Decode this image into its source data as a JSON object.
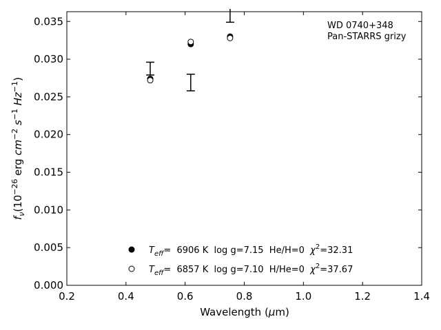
{
  "chart_data": {
    "type": "scatter",
    "xlabel_main": "Wavelength (",
    "xlabel_mu": "μ",
    "xlabel_unit": "m)",
    "ylabel_f": "f",
    "ylabel_nu": "ν",
    "ylabel_paren": "(10",
    "ylabel_exp1": "−26",
    "ylabel_erg": " erg ",
    "ylabel_cm": "cm",
    "ylabel_exp2": "−2",
    "ylabel_s": " s",
    "ylabel_exp3": "−1",
    "ylabel_hz": " Hz",
    "ylabel_exp4": "−1",
    "ylabel_close": ")",
    "xlim": [
      0.2,
      1.4
    ],
    "ylim": [
      0.0,
      0.0363
    ],
    "x_ticks": [
      0.2,
      0.4,
      0.6,
      0.8,
      1.0,
      1.2,
      1.4
    ],
    "x_tick_labels": [
      "0.2",
      "0.4",
      "0.6",
      "0.8",
      "1.0",
      "1.2",
      "1.4"
    ],
    "y_ticks": [
      0.0,
      0.005,
      0.01,
      0.015,
      0.02,
      0.025,
      0.03,
      0.035
    ],
    "y_tick_labels": [
      "0.000",
      "0.005",
      "0.010",
      "0.015",
      "0.020",
      "0.025",
      "0.030",
      "0.035"
    ],
    "grid": false,
    "annotation_lines": [
      "WD 0740+348",
      "Pan-STARRS grizy"
    ],
    "observed": [
      {
        "x": 0.482,
        "ylo": 0.0279,
        "yhi": 0.0296
      },
      {
        "x": 0.619,
        "ylo": 0.0258,
        "yhi": 0.028
      },
      {
        "x": 0.752,
        "ylo": 0.0349,
        "yhi": 0.0368
      }
    ],
    "series": [
      {
        "marker": "filled",
        "x": [
          0.482,
          0.619,
          0.752
        ],
        "y": [
          0.0274,
          0.032,
          0.033
        ],
        "legend": {
          "t": "T",
          "eff": "eff",
          "value": "=  6906 K  log g=7.15  He/H=0  ",
          "chi": "χ",
          "chi_exp": "2",
          "chi_value": "=32.31"
        }
      },
      {
        "marker": "open",
        "x": [
          0.482,
          0.619,
          0.752
        ],
        "y": [
          0.0272,
          0.0323,
          0.0328
        ],
        "legend": {
          "t": "T",
          "eff": "eff",
          "value": "=  6857 K  log g=7.10  H/He=0  ",
          "chi": "χ",
          "chi_exp": "2",
          "chi_value": "=37.67"
        }
      }
    ],
    "colors": {
      "marker": "#000000",
      "errorbar": "#000000"
    }
  }
}
